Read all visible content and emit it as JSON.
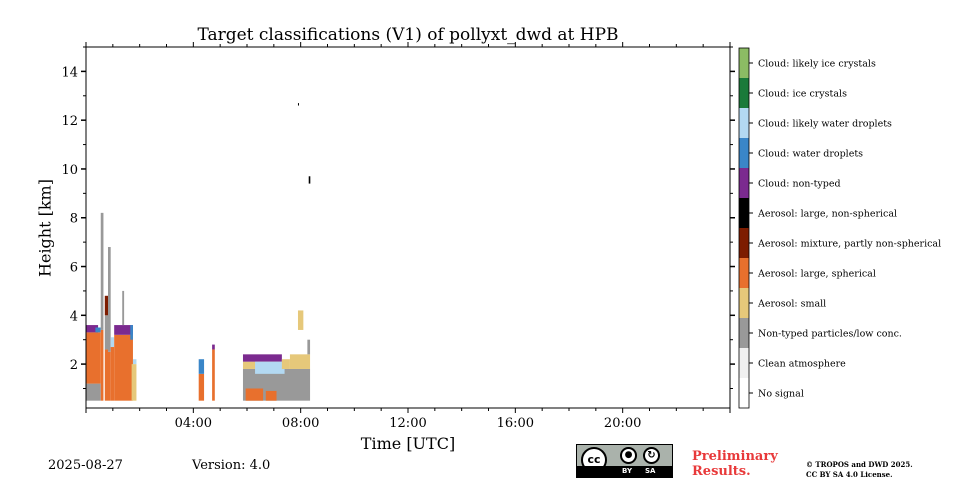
{
  "chart_data": {
    "type": "heatmap",
    "title": "Target classifications (V1) of pollyxt_dwd at HPB",
    "xlabel": "Time [UTC]",
    "ylabel": "Height [km]",
    "xlim_hours": [
      0,
      24
    ],
    "ylim_km": [
      0.2,
      15
    ],
    "xticks_hours": [
      4,
      8,
      12,
      16,
      20
    ],
    "xtick_labels": [
      "04:00",
      "08:00",
      "12:00",
      "16:00",
      "20:00"
    ],
    "yticks_km": [
      2,
      4,
      6,
      8,
      10,
      12,
      14
    ],
    "ytick_labels": [
      "2",
      "4",
      "6",
      "8",
      "10",
      "12",
      "14"
    ],
    "classes": [
      {
        "code": 0,
        "label": "No signal",
        "color": "#ffffff"
      },
      {
        "code": 1,
        "label": "Clean atmosphere",
        "color": "#f0f0f0"
      },
      {
        "code": 2,
        "label": "Non-typed particles/low conc.",
        "color": "#999999"
      },
      {
        "code": 3,
        "label": "Aerosol: small",
        "color": "#e6c87a"
      },
      {
        "code": 4,
        "label": "Aerosol: large, spherical",
        "color": "#e8702d"
      },
      {
        "code": 5,
        "label": "Aerosol: mixture, partly non-spherical",
        "color": "#7d1c00"
      },
      {
        "code": 6,
        "label": "Aerosol: large, non-spherical",
        "color": "#000000"
      },
      {
        "code": 7,
        "label": "Cloud: non-typed",
        "color": "#7b2a8f"
      },
      {
        "code": 8,
        "label": "Cloud: water droplets",
        "color": "#3a86c8"
      },
      {
        "code": 9,
        "label": "Cloud: likely water droplets",
        "color": "#b3d9f2"
      },
      {
        "code": 10,
        "label": "Cloud: ice crystals",
        "color": "#1a7a3a"
      },
      {
        "code": 11,
        "label": "Cloud: likely ice crystals",
        "color": "#8cbc64"
      }
    ],
    "regions": [
      {
        "t0": 0.0,
        "t1": 0.55,
        "h0": 0.5,
        "h1": 1.2,
        "class": 2
      },
      {
        "t0": 0.0,
        "t1": 0.55,
        "h0": 1.2,
        "h1": 3.3,
        "class": 4
      },
      {
        "t0": 0.0,
        "t1": 0.45,
        "h0": 3.3,
        "h1": 3.6,
        "class": 7
      },
      {
        "t0": 0.35,
        "t1": 0.55,
        "h0": 3.3,
        "h1": 3.5,
        "class": 8
      },
      {
        "t0": 0.55,
        "t1": 0.65,
        "h0": 0.5,
        "h1": 3.4,
        "class": 4
      },
      {
        "t0": 0.55,
        "t1": 0.65,
        "h0": 3.4,
        "h1": 8.2,
        "class": 2
      },
      {
        "t0": 0.7,
        "t1": 0.82,
        "h0": 0.5,
        "h1": 2.6,
        "class": 4
      },
      {
        "t0": 0.7,
        "t1": 0.82,
        "h0": 2.6,
        "h1": 4.0,
        "class": 2
      },
      {
        "t0": 0.7,
        "t1": 0.82,
        "h0": 4.0,
        "h1": 4.8,
        "class": 5
      },
      {
        "t0": 0.82,
        "t1": 0.92,
        "h0": 0.5,
        "h1": 2.5,
        "class": 4
      },
      {
        "t0": 0.82,
        "t1": 0.92,
        "h0": 2.5,
        "h1": 6.8,
        "class": 2
      },
      {
        "t0": 0.92,
        "t1": 1.05,
        "h0": 0.5,
        "h1": 2.7,
        "class": 4
      },
      {
        "t0": 0.92,
        "t1": 1.05,
        "h0": 2.7,
        "h1": 3.1,
        "class": 9
      },
      {
        "t0": 1.05,
        "t1": 1.75,
        "h0": 0.5,
        "h1": 3.2,
        "class": 4
      },
      {
        "t0": 1.05,
        "t1": 1.75,
        "h0": 3.2,
        "h1": 3.6,
        "class": 7
      },
      {
        "t0": 1.35,
        "t1": 1.42,
        "h0": 3.6,
        "h1": 5.0,
        "class": 2
      },
      {
        "t0": 1.65,
        "t1": 1.75,
        "h0": 3.0,
        "h1": 3.6,
        "class": 8
      },
      {
        "t0": 1.7,
        "t1": 1.88,
        "h0": 0.5,
        "h1": 2.0,
        "class": 3
      },
      {
        "t0": 1.75,
        "t1": 1.88,
        "h0": 2.0,
        "h1": 2.2,
        "class": 9
      },
      {
        "t0": 4.2,
        "t1": 4.4,
        "h0": 0.5,
        "h1": 1.6,
        "class": 4
      },
      {
        "t0": 4.2,
        "t1": 4.4,
        "h0": 1.6,
        "h1": 2.2,
        "class": 8
      },
      {
        "t0": 4.7,
        "t1": 4.8,
        "h0": 0.5,
        "h1": 2.6,
        "class": 4
      },
      {
        "t0": 4.7,
        "t1": 4.8,
        "h0": 2.6,
        "h1": 2.8,
        "class": 7
      },
      {
        "t0": 5.85,
        "t1": 8.35,
        "h0": 0.5,
        "h1": 1.8,
        "class": 2
      },
      {
        "t0": 5.85,
        "t1": 7.3,
        "h0": 1.8,
        "h1": 2.1,
        "class": 3
      },
      {
        "t0": 5.85,
        "t1": 7.3,
        "h0": 2.1,
        "h1": 2.4,
        "class": 7
      },
      {
        "t0": 6.3,
        "t1": 7.4,
        "h0": 1.6,
        "h1": 2.1,
        "class": 9
      },
      {
        "t0": 7.3,
        "t1": 7.6,
        "h0": 1.8,
        "h1": 2.2,
        "class": 3
      },
      {
        "t0": 7.6,
        "t1": 8.35,
        "h0": 1.8,
        "h1": 2.4,
        "class": 3
      },
      {
        "t0": 8.25,
        "t1": 8.35,
        "h0": 2.4,
        "h1": 3.0,
        "class": 2
      },
      {
        "t0": 7.9,
        "t1": 8.1,
        "h0": 3.4,
        "h1": 4.2,
        "class": 3
      },
      {
        "t0": 5.95,
        "t1": 6.6,
        "h0": 0.5,
        "h1": 1.0,
        "class": 4
      },
      {
        "t0": 6.7,
        "t1": 7.1,
        "h0": 0.5,
        "h1": 0.9,
        "class": 4
      },
      {
        "t0": 8.3,
        "t1": 8.36,
        "h0": 9.4,
        "h1": 9.7,
        "class": 6
      },
      {
        "t0": 7.9,
        "t1": 7.93,
        "h0": 12.6,
        "h1": 12.7,
        "class": 6
      }
    ]
  },
  "footer": {
    "date": "2025-08-27",
    "version": "Version: 4.0",
    "cc_main": "cc",
    "cc_by": "BY",
    "cc_sa": "SA",
    "preliminary_line1": "Preliminary",
    "preliminary_line2": "Results.",
    "copyright_line1": "© TROPOS and DWD 2025.",
    "copyright_line2": "CC BY SA 4.0 License."
  }
}
